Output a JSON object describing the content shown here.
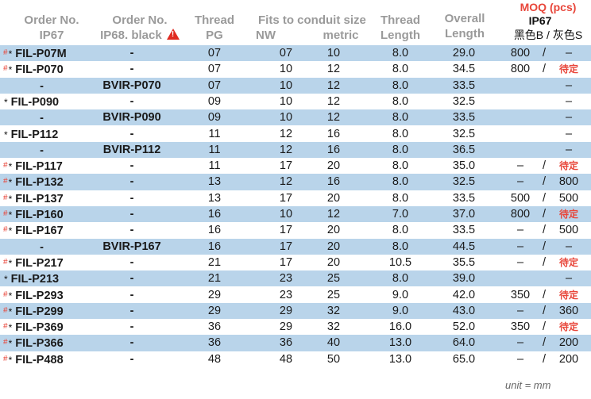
{
  "headers": {
    "order_ip67": [
      "Order No.",
      "IP67"
    ],
    "order_ip68": [
      "Order No.",
      "IP68. black"
    ],
    "thread_pg": [
      "Thread",
      "PG"
    ],
    "fits": "Fits to conduit size",
    "nw": "NW",
    "metric": "metric",
    "thread_length": [
      "Thread",
      "Length"
    ],
    "overall_length": [
      "Overall",
      "Length"
    ],
    "moq": "MOQ (pcs)",
    "moq_ip67": "IP67",
    "moq_b": "黑色B",
    "moq_sep": "/",
    "moq_s": "灰色S",
    "warning_icon": "warning-triangle-icon"
  },
  "rows": [
    {
      "m1": "#",
      "m2": "*",
      "ip67": "FIL-P07M",
      "ip68": "-",
      "pg": "07",
      "nw": "07",
      "metric": "10",
      "tl": "8.0",
      "ol": "29.0",
      "b": "800",
      "sl": "/",
      "s": "–"
    },
    {
      "m1": "#",
      "m2": "*",
      "ip67": "FIL-P070",
      "ip68": "-",
      "pg": "07",
      "nw": "10",
      "metric": "12",
      "tl": "8.0",
      "ol": "34.5",
      "b": "800",
      "sl": "/",
      "s": "待定"
    },
    {
      "m1": "",
      "m2": "",
      "ip67": "-",
      "ip68": "BVIR-P070",
      "pg": "07",
      "nw": "10",
      "metric": "12",
      "tl": "8.0",
      "ol": "33.5",
      "b": "",
      "sl": "",
      "s": "–"
    },
    {
      "m1": "",
      "m2": "*",
      "ip67": "FIL-P090",
      "ip68": "-",
      "pg": "09",
      "nw": "10",
      "metric": "12",
      "tl": "8.0",
      "ol": "32.5",
      "b": "",
      "sl": "",
      "s": "–"
    },
    {
      "m1": "",
      "m2": "",
      "ip67": "-",
      "ip68": "BVIR-P090",
      "pg": "09",
      "nw": "10",
      "metric": "12",
      "tl": "8.0",
      "ol": "33.5",
      "b": "",
      "sl": "",
      "s": "–"
    },
    {
      "m1": "",
      "m2": "*",
      "ip67": "FIL-P112",
      "ip68": "-",
      "pg": "11",
      "nw": "12",
      "metric": "16",
      "tl": "8.0",
      "ol": "32.5",
      "b": "",
      "sl": "",
      "s": "–"
    },
    {
      "m1": "",
      "m2": "",
      "ip67": "-",
      "ip68": "BVIR-P112",
      "pg": "11",
      "nw": "12",
      "metric": "16",
      "tl": "8.0",
      "ol": "36.5",
      "b": "",
      "sl": "",
      "s": "–"
    },
    {
      "m1": "#",
      "m2": "*",
      "ip67": "FIL-P117",
      "ip68": "-",
      "pg": "11",
      "nw": "17",
      "metric": "20",
      "tl": "8.0",
      "ol": "35.0",
      "b": "–",
      "sl": "/",
      "s": "待定"
    },
    {
      "m1": "#",
      "m2": "*",
      "ip67": "FIL-P132",
      "ip68": "-",
      "pg": "13",
      "nw": "12",
      "metric": "16",
      "tl": "8.0",
      "ol": "32.5",
      "b": "–",
      "sl": "/",
      "s": "800"
    },
    {
      "m1": "#",
      "m2": "*",
      "ip67": "FIL-P137",
      "ip68": "-",
      "pg": "13",
      "nw": "17",
      "metric": "20",
      "tl": "8.0",
      "ol": "33.5",
      "b": "500",
      "sl": "/",
      "s": "500"
    },
    {
      "m1": "#",
      "m2": "*",
      "ip67": "FIL-P160",
      "ip68": "-",
      "pg": "16",
      "nw": "10",
      "metric": "12",
      "tl": "7.0",
      "ol": "37.0",
      "b": "800",
      "sl": "/",
      "s": "待定"
    },
    {
      "m1": "#",
      "m2": "*",
      "ip67": "FIL-P167",
      "ip68": "-",
      "pg": "16",
      "nw": "17",
      "metric": "20",
      "tl": "8.0",
      "ol": "33.5",
      "b": "–",
      "sl": "/",
      "s": "500"
    },
    {
      "m1": "",
      "m2": "",
      "ip67": "-",
      "ip68": "BVIR-P167",
      "pg": "16",
      "nw": "17",
      "metric": "20",
      "tl": "8.0",
      "ol": "44.5",
      "b": "–",
      "sl": "/",
      "s": "–"
    },
    {
      "m1": "#",
      "m2": "*",
      "ip67": "FIL-P217",
      "ip68": "-",
      "pg": "21",
      "nw": "17",
      "metric": "20",
      "tl": "10.5",
      "ol": "35.5",
      "b": "–",
      "sl": "/",
      "s": "待定"
    },
    {
      "m1": "",
      "m2": "*",
      "ip67": "FIL-P213",
      "ip68": "-",
      "pg": "21",
      "nw": "23",
      "metric": "25",
      "tl": "8.0",
      "ol": "39.0",
      "b": "",
      "sl": "",
      "s": "–"
    },
    {
      "m1": "#",
      "m2": "*",
      "ip67": "FIL-P293",
      "ip68": "-",
      "pg": "29",
      "nw": "23",
      "metric": "25",
      "tl": "9.0",
      "ol": "42.0",
      "b": "350",
      "sl": "/",
      "s": "待定"
    },
    {
      "m1": "#",
      "m2": "*",
      "ip67": "FIL-P299",
      "ip68": "-",
      "pg": "29",
      "nw": "29",
      "metric": "32",
      "tl": "9.0",
      "ol": "43.0",
      "b": "–",
      "sl": "/",
      "s": "360"
    },
    {
      "m1": "#",
      "m2": "*",
      "ip67": "FIL-P369",
      "ip68": "-",
      "pg": "36",
      "nw": "29",
      "metric": "32",
      "tl": "16.0",
      "ol": "52.0",
      "b": "350",
      "sl": "/",
      "s": "待定"
    },
    {
      "m1": "#",
      "m2": "*",
      "ip67": "FIL-P366",
      "ip68": "-",
      "pg": "36",
      "nw": "36",
      "metric": "40",
      "tl": "13.0",
      "ol": "64.0",
      "b": "–",
      "sl": "/",
      "s": "200"
    },
    {
      "m1": "#",
      "m2": "*",
      "ip67": "FIL-P488",
      "ip68": "-",
      "pg": "48",
      "nw": "48",
      "metric": "50",
      "tl": "13.0",
      "ol": "65.0",
      "b": "–",
      "sl": "/",
      "s": "200"
    }
  ],
  "unit": "unit = mm",
  "colors": {
    "row_blue": "#b9d4ea",
    "accent_red": "#e8463a"
  }
}
